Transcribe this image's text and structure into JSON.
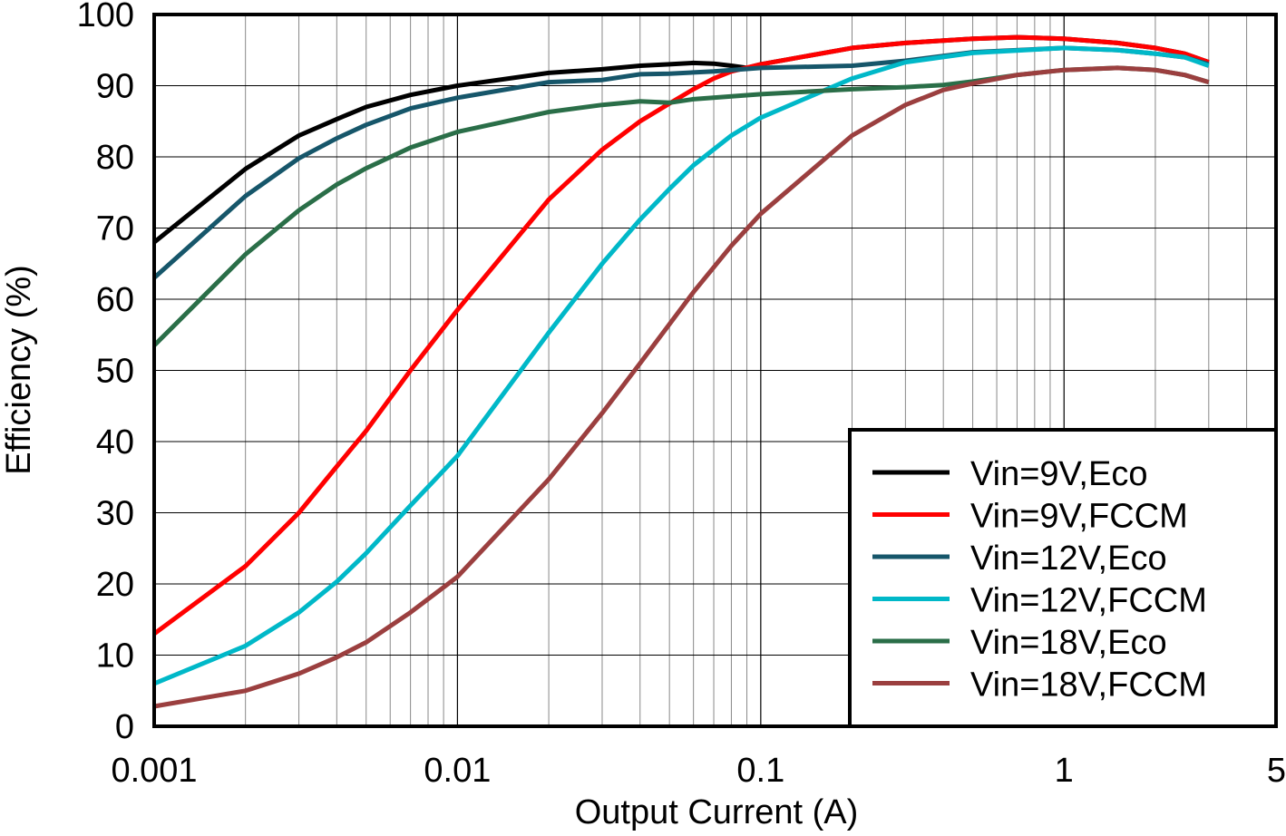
{
  "chart_data": {
    "type": "line",
    "title": "",
    "xlabel": "Output Current (A)",
    "ylabel": "Efficiency (%)",
    "xscale": "log",
    "xlim": [
      0.001,
      5
    ],
    "ylim": [
      0,
      100
    ],
    "xticks": [
      0.001,
      0.01,
      0.1,
      1,
      5
    ],
    "xtick_labels": [
      "0.001",
      "0.01",
      "0.1",
      "1",
      "5"
    ],
    "yticks": [
      0,
      10,
      20,
      30,
      40,
      50,
      60,
      70,
      80,
      90,
      100
    ],
    "ytick_labels": [
      "0",
      "10",
      "20",
      "30",
      "40",
      "50",
      "60",
      "70",
      "80",
      "90",
      "100"
    ],
    "grid": true,
    "legend_position": "bottom-right",
    "series": [
      {
        "name": "Vin=9V,Eco",
        "color": "#000000",
        "x": [
          0.001,
          0.002,
          0.003,
          0.004,
          0.005,
          0.007,
          0.01,
          0.02,
          0.03,
          0.04,
          0.05,
          0.06,
          0.07,
          0.08,
          0.09,
          0.1,
          0.2,
          0.3,
          0.5,
          0.7,
          1,
          1.5,
          2,
          2.5,
          3
        ],
        "y": [
          68,
          78.3,
          83,
          85.3,
          87,
          88.7,
          90,
          91.8,
          92.3,
          92.8,
          93,
          93.2,
          93.1,
          92.8,
          92.5,
          93,
          95.3,
          96,
          96.6,
          96.8,
          96.6,
          96,
          95.3,
          94.5,
          93.3
        ]
      },
      {
        "name": "Vin=9V,FCCM",
        "color": "#ff0000",
        "x": [
          0.001,
          0.002,
          0.003,
          0.004,
          0.005,
          0.007,
          0.01,
          0.02,
          0.03,
          0.04,
          0.05,
          0.06,
          0.07,
          0.08,
          0.1,
          0.2,
          0.3,
          0.5,
          0.7,
          1,
          1.5,
          2,
          2.5,
          3
        ],
        "y": [
          13,
          22.5,
          30,
          36.5,
          41.5,
          50,
          58.5,
          74,
          81,
          85,
          87.5,
          89.5,
          91,
          92,
          93,
          95.3,
          96,
          96.6,
          96.8,
          96.6,
          96,
          95.3,
          94.5,
          93.3
        ]
      },
      {
        "name": "Vin=12V,Eco",
        "color": "#16566a",
        "x": [
          0.001,
          0.002,
          0.003,
          0.004,
          0.005,
          0.007,
          0.01,
          0.02,
          0.03,
          0.04,
          0.05,
          0.07,
          0.1,
          0.2,
          0.3,
          0.5,
          1,
          1.5,
          2,
          2.5,
          3
        ],
        "y": [
          63,
          74.5,
          79.8,
          82.6,
          84.5,
          86.8,
          88.3,
          90.5,
          90.8,
          91.6,
          91.7,
          92,
          92.5,
          92.8,
          93.5,
          94.7,
          95.3,
          95,
          94.5,
          94,
          93
        ]
      },
      {
        "name": "Vin=12V,FCCM",
        "color": "#00b8c8",
        "x": [
          0.001,
          0.002,
          0.003,
          0.004,
          0.005,
          0.007,
          0.01,
          0.02,
          0.03,
          0.04,
          0.05,
          0.06,
          0.08,
          0.1,
          0.2,
          0.3,
          0.5,
          1,
          1.5,
          2,
          2.5,
          3
        ],
        "y": [
          6,
          11.3,
          16,
          20.3,
          24.3,
          31,
          38,
          55.3,
          65,
          71.2,
          75.5,
          78.8,
          83,
          85.5,
          91,
          93.3,
          94.6,
          95.3,
          95,
          94.5,
          94,
          92.8
        ]
      },
      {
        "name": "Vin=18V,Eco",
        "color": "#2a6e48",
        "x": [
          0.001,
          0.002,
          0.003,
          0.004,
          0.005,
          0.007,
          0.01,
          0.02,
          0.03,
          0.04,
          0.05,
          0.06,
          0.1,
          0.2,
          0.3,
          0.4,
          0.5,
          0.7,
          1,
          1.5,
          2,
          2.5,
          3
        ],
        "y": [
          53.5,
          66.3,
          72.5,
          76.1,
          78.4,
          81.3,
          83.5,
          86.3,
          87.3,
          87.8,
          87.6,
          88.1,
          88.8,
          89.5,
          89.8,
          90.1,
          90.6,
          91.5,
          92.2,
          92.5,
          92.2,
          91.5,
          90.5
        ]
      },
      {
        "name": "Vin=18V,FCCM",
        "color": "#9b3f3f",
        "x": [
          0.001,
          0.002,
          0.003,
          0.004,
          0.005,
          0.007,
          0.01,
          0.02,
          0.03,
          0.04,
          0.05,
          0.06,
          0.08,
          0.1,
          0.2,
          0.3,
          0.4,
          0.5,
          0.7,
          1,
          1.5,
          2,
          2.5,
          3
        ],
        "y": [
          2.8,
          5,
          7.4,
          9.7,
          11.8,
          16,
          21,
          34.7,
          44,
          51,
          56.5,
          61,
          67.5,
          72,
          83,
          87.3,
          89.4,
          90.3,
          91.5,
          92.2,
          92.5,
          92.2,
          91.5,
          90.5
        ]
      }
    ]
  }
}
